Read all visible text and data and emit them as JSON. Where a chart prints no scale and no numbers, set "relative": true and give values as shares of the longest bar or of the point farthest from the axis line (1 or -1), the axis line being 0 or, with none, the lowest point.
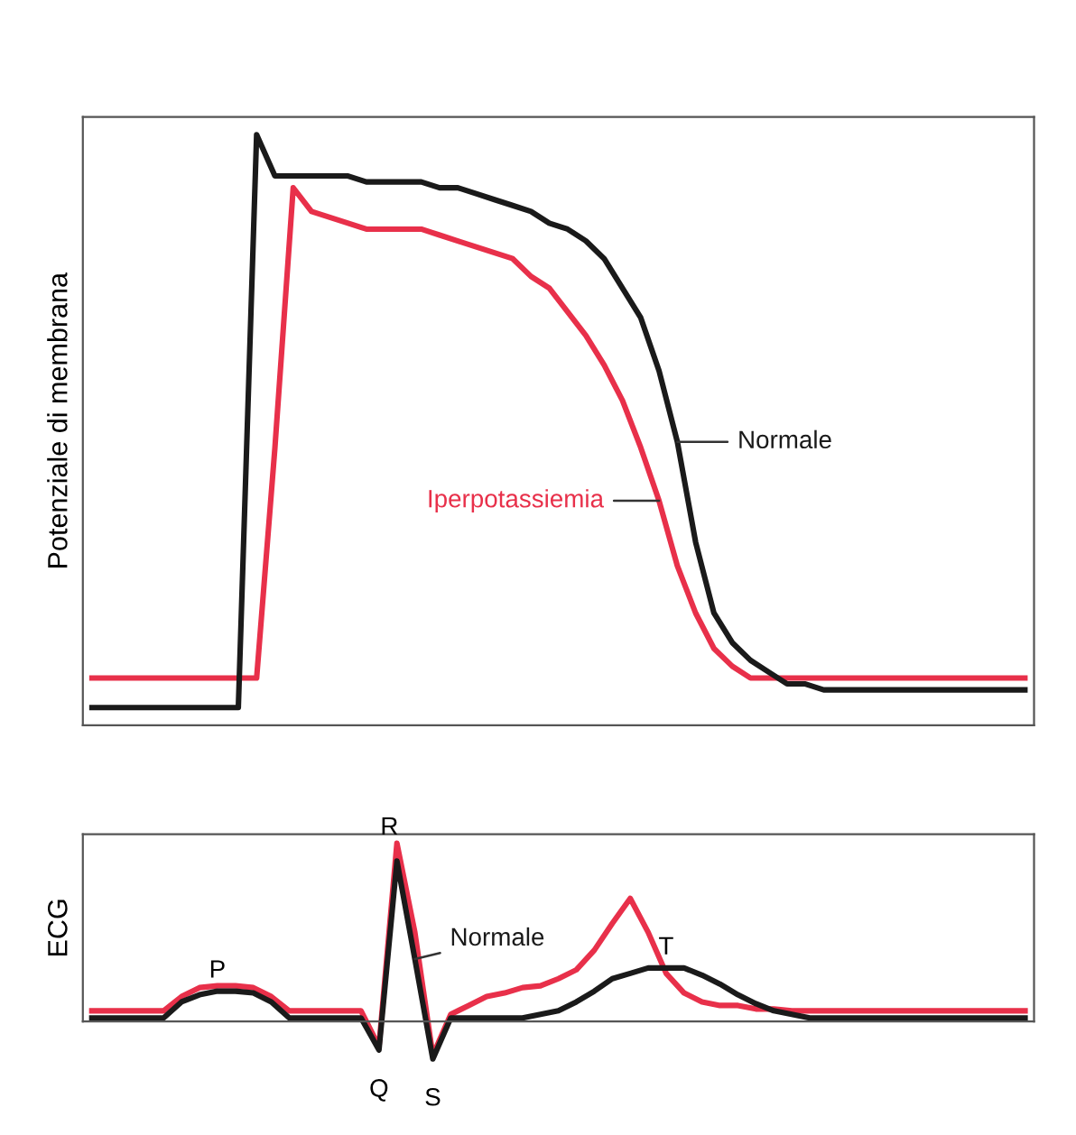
{
  "chart_data": [
    {
      "type": "line",
      "relative": true,
      "ylabel": "Potenziale di membrana",
      "categories": [
        null,
        null,
        null,
        null,
        null,
        null,
        null,
        null,
        null,
        null,
        null,
        null,
        null,
        null,
        null,
        null,
        null,
        null,
        null,
        null,
        null,
        null,
        null,
        null,
        null,
        null,
        null,
        null,
        null,
        null,
        null,
        null,
        null,
        null,
        null,
        null,
        null,
        null,
        null,
        null,
        null,
        null,
        null,
        null,
        null,
        null,
        null,
        null,
        null,
        null,
        null,
        null
      ],
      "series": [
        {
          "name": "Iperpotassiemia",
          "color": "#e8304a",
          "values": [
            0.08,
            0.08,
            0.08,
            0.08,
            0.08,
            0.08,
            0.08,
            0.08,
            0.08,
            0.08,
            0.47,
            0.91,
            0.87,
            0.86,
            0.85,
            0.84,
            0.84,
            0.84,
            0.84,
            0.83,
            0.82,
            0.81,
            0.8,
            0.79,
            0.76,
            0.74,
            0.7,
            0.66,
            0.61,
            0.55,
            0.47,
            0.38,
            0.27,
            0.19,
            0.13,
            0.1,
            0.08,
            0.08,
            0.08,
            0.08,
            0.08,
            0.08,
            0.08,
            0.08,
            0.08,
            0.08,
            0.08,
            0.08,
            0.08,
            0.08,
            0.08,
            0.08
          ]
        },
        {
          "name": "Normale",
          "color": "#1a1a1a",
          "values": [
            0.03,
            0.03,
            0.03,
            0.03,
            0.03,
            0.03,
            0.03,
            0.03,
            0.03,
            1.0,
            0.93,
            0.93,
            0.93,
            0.93,
            0.93,
            0.92,
            0.92,
            0.92,
            0.92,
            0.91,
            0.91,
            0.9,
            0.89,
            0.88,
            0.87,
            0.85,
            0.84,
            0.82,
            0.79,
            0.74,
            0.69,
            0.6,
            0.48,
            0.31,
            0.19,
            0.14,
            0.11,
            0.09,
            0.07,
            0.07,
            0.06,
            0.06,
            0.06,
            0.06,
            0.06,
            0.06,
            0.06,
            0.06,
            0.06,
            0.06,
            0.06,
            0.06
          ]
        }
      ]
    },
    {
      "type": "line",
      "relative": true,
      "ylabel": "ECG",
      "annotations": [
        "P",
        "Q",
        "R",
        "S",
        "T"
      ],
      "categories": [
        null,
        null,
        null,
        null,
        null,
        null,
        null,
        null,
        null,
        null,
        null,
        null,
        null,
        null,
        null,
        null,
        null,
        null,
        null,
        null,
        null,
        null,
        null,
        null,
        null,
        null,
        null,
        null,
        null,
        null,
        null,
        null,
        null,
        null,
        null,
        null,
        null,
        null,
        null,
        null,
        null,
        null,
        null,
        null,
        null,
        null,
        null,
        null,
        null,
        null,
        null,
        null,
        null
      ],
      "series": [
        {
          "color": "#e8304a",
          "values": [
            0.06,
            0.06,
            0.06,
            0.06,
            0.06,
            0.14,
            0.19,
            0.2,
            0.2,
            0.19,
            0.14,
            0.06,
            0.06,
            0.06,
            0.06,
            0.06,
            -0.14,
            1.0,
            0.5,
            -0.19,
            0.04,
            0.09,
            0.14,
            0.16,
            0.19,
            0.2,
            0.24,
            0.29,
            0.4,
            0.55,
            0.69,
            0.5,
            0.27,
            0.16,
            0.11,
            0.09,
            0.09,
            0.07,
            0.07,
            0.06,
            0.06,
            0.06,
            0.06,
            0.06,
            0.06,
            0.06,
            0.06,
            0.06,
            0.06,
            0.06,
            0.06,
            0.06,
            0.06
          ]
        },
        {
          "name": "Normale",
          "color": "#1a1a1a",
          "values": [
            0.02,
            0.02,
            0.02,
            0.02,
            0.02,
            0.11,
            0.15,
            0.17,
            0.17,
            0.16,
            0.11,
            0.02,
            0.02,
            0.02,
            0.02,
            0.02,
            -0.16,
            0.9,
            0.35,
            -0.21,
            0.02,
            0.02,
            0.02,
            0.02,
            0.02,
            0.04,
            0.06,
            0.11,
            0.17,
            0.24,
            0.27,
            0.3,
            0.3,
            0.3,
            0.26,
            0.21,
            0.15,
            0.1,
            0.06,
            0.04,
            0.02,
            0.02,
            0.02,
            0.02,
            0.02,
            0.02,
            0.02,
            0.02,
            0.02,
            0.02,
            0.02,
            0.02,
            0.02
          ]
        }
      ]
    }
  ]
}
